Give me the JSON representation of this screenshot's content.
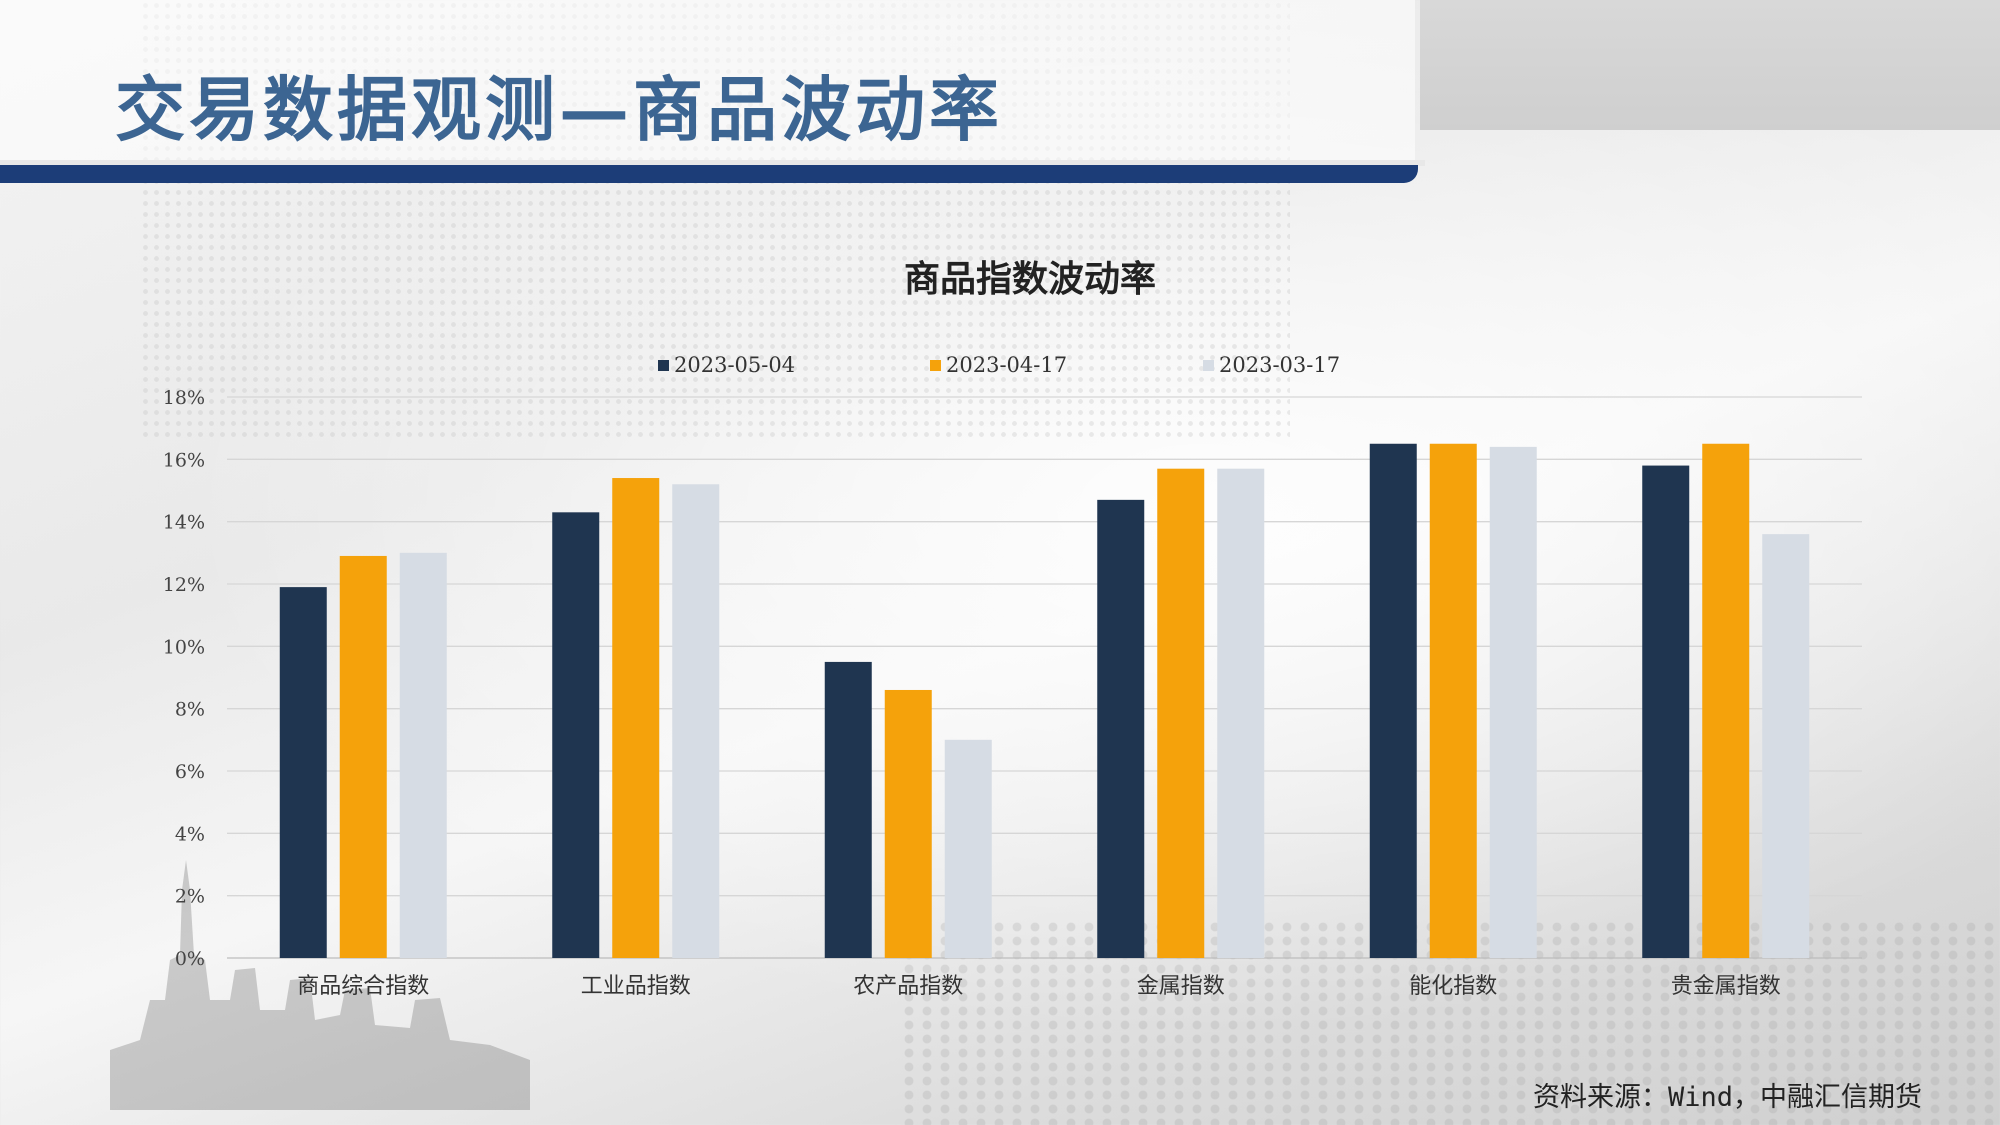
{
  "slide": {
    "title": "交易数据观测—商品波动率",
    "source": "资料来源：Wind，中融汇信期货"
  },
  "colors": {
    "title": "#3c6592",
    "title_bar": "#1c3d78",
    "series": [
      "#1f3550",
      "#f5a20b",
      "#d6dce4"
    ],
    "grid": "#d6d6d6"
  },
  "chart_data": {
    "type": "bar",
    "title": "商品指数波动率",
    "categories": [
      "商品综合指数",
      "工业品指数",
      "农产品指数",
      "金属指数",
      "能化指数",
      "贵金属指数"
    ],
    "series": [
      {
        "name": "2023-05-04",
        "values": [
          11.9,
          14.3,
          9.5,
          14.7,
          16.5,
          15.8
        ]
      },
      {
        "name": "2023-04-17",
        "values": [
          12.9,
          15.4,
          8.6,
          15.7,
          16.5,
          16.5
        ]
      },
      {
        "name": "2023-03-17",
        "values": [
          13.0,
          15.2,
          7.0,
          15.7,
          16.4,
          13.6
        ]
      }
    ],
    "y_ticks": [
      "0%",
      "2%",
      "4%",
      "6%",
      "8%",
      "10%",
      "12%",
      "14%",
      "16%",
      "18%"
    ],
    "ylim": [
      0,
      18
    ],
    "grid": true,
    "legend_position": "top-center"
  }
}
